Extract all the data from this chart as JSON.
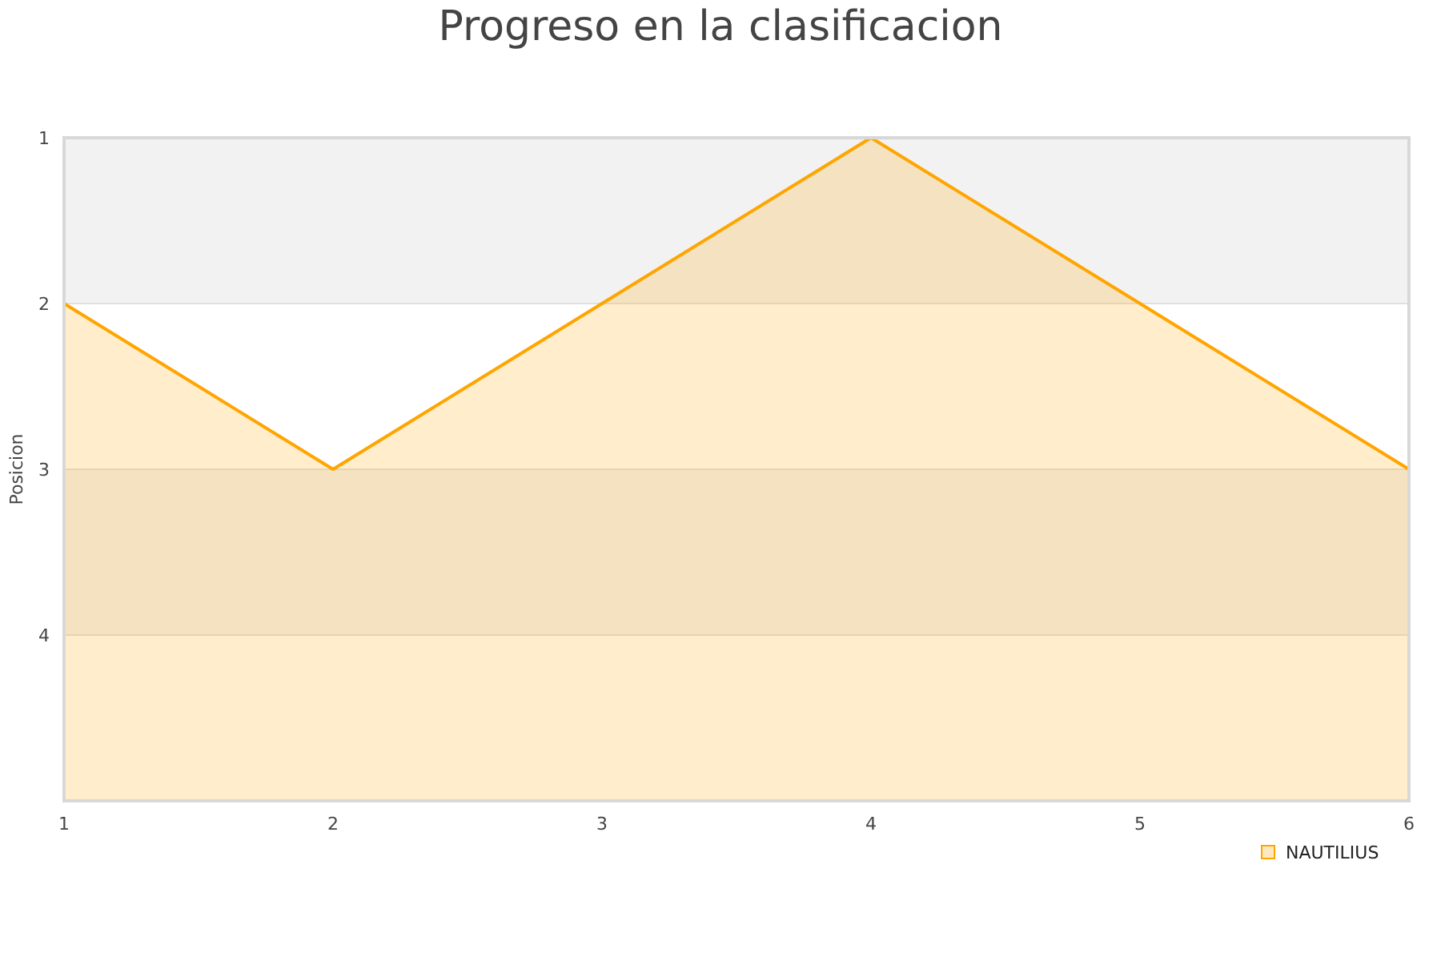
{
  "chart_data": {
    "type": "line",
    "title": "Progreso en la clasificacion",
    "ylabel": "Posicion",
    "x": [
      1,
      2,
      3,
      4,
      5,
      6
    ],
    "series": [
      {
        "name": "NAUTILIUS",
        "color": "#ffa500",
        "values": [
          2,
          3,
          2,
          1,
          2,
          3
        ],
        "lower": [
          5,
          5,
          5,
          5,
          5,
          5
        ],
        "upper": [
          2,
          3,
          2,
          1,
          2,
          3
        ]
      }
    ],
    "xlim": [
      1,
      6
    ],
    "xticks": [
      1,
      2,
      3,
      4,
      5,
      6
    ],
    "ylim": [
      5,
      1
    ],
    "yticks": [
      1,
      2,
      3,
      4
    ],
    "bands": [
      {
        "axis": "y",
        "from": 1,
        "to": 2,
        "color": "#f2f2f2"
      },
      {
        "axis": "y",
        "from": 3,
        "to": 4,
        "color": "#f2f2f2"
      }
    ],
    "grid": "y",
    "legend": "bottom right"
  }
}
